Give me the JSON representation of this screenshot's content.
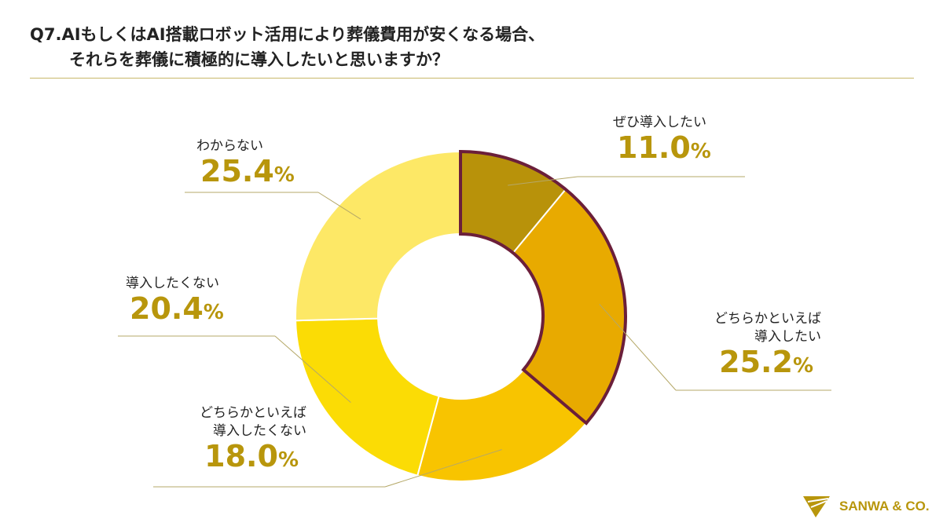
{
  "title_line1": "Q7.AIもしくはAI搭載ロボット活用により葬儀費用が安くなる場合、",
  "title_line2": "それらを葬儀に積極的に導入したいと思いますか？",
  "logo_text": "SANWA & CO.",
  "colors": {
    "accent": "#b8960c",
    "outline": "#6b1f3a"
  },
  "chart_data": {
    "type": "pie",
    "donut": true,
    "title": "Q7.AIもしくはAI搭載ロボット活用により葬儀費用が安くなる場合、それらを葬儀に積極的に導入したいと思いますか？",
    "unit": "%",
    "slices": [
      {
        "label": "ぜひ導入したい",
        "label_lines": [
          "ぜひ導入したい"
        ],
        "value": 11.0,
        "value_text": "11.0",
        "color": "#b8920a"
      },
      {
        "label": "どちらかといえば導入したい",
        "label_lines": [
          "どちらかといえば",
          "導入したい"
        ],
        "value": 25.2,
        "value_text": "25.2",
        "color": "#e8aa00"
      },
      {
        "label": "どちらかといえば導入したくない",
        "label_lines": [
          "どちらかといえば",
          "導入したくない"
        ],
        "value": 18.0,
        "value_text": "18.0",
        "color": "#f8c400"
      },
      {
        "label": "導入したくない",
        "label_lines": [
          "導入したくない"
        ],
        "value": 20.4,
        "value_text": "20.4",
        "color": "#fbdc05"
      },
      {
        "label": "わからない",
        "label_lines": [
          "わからない"
        ],
        "value": 25.4,
        "value_text": "25.4",
        "color": "#fde866"
      }
    ],
    "highlight_group": [
      "ぜひ導入したい",
      "どちらかといえば導入したい"
    ]
  }
}
